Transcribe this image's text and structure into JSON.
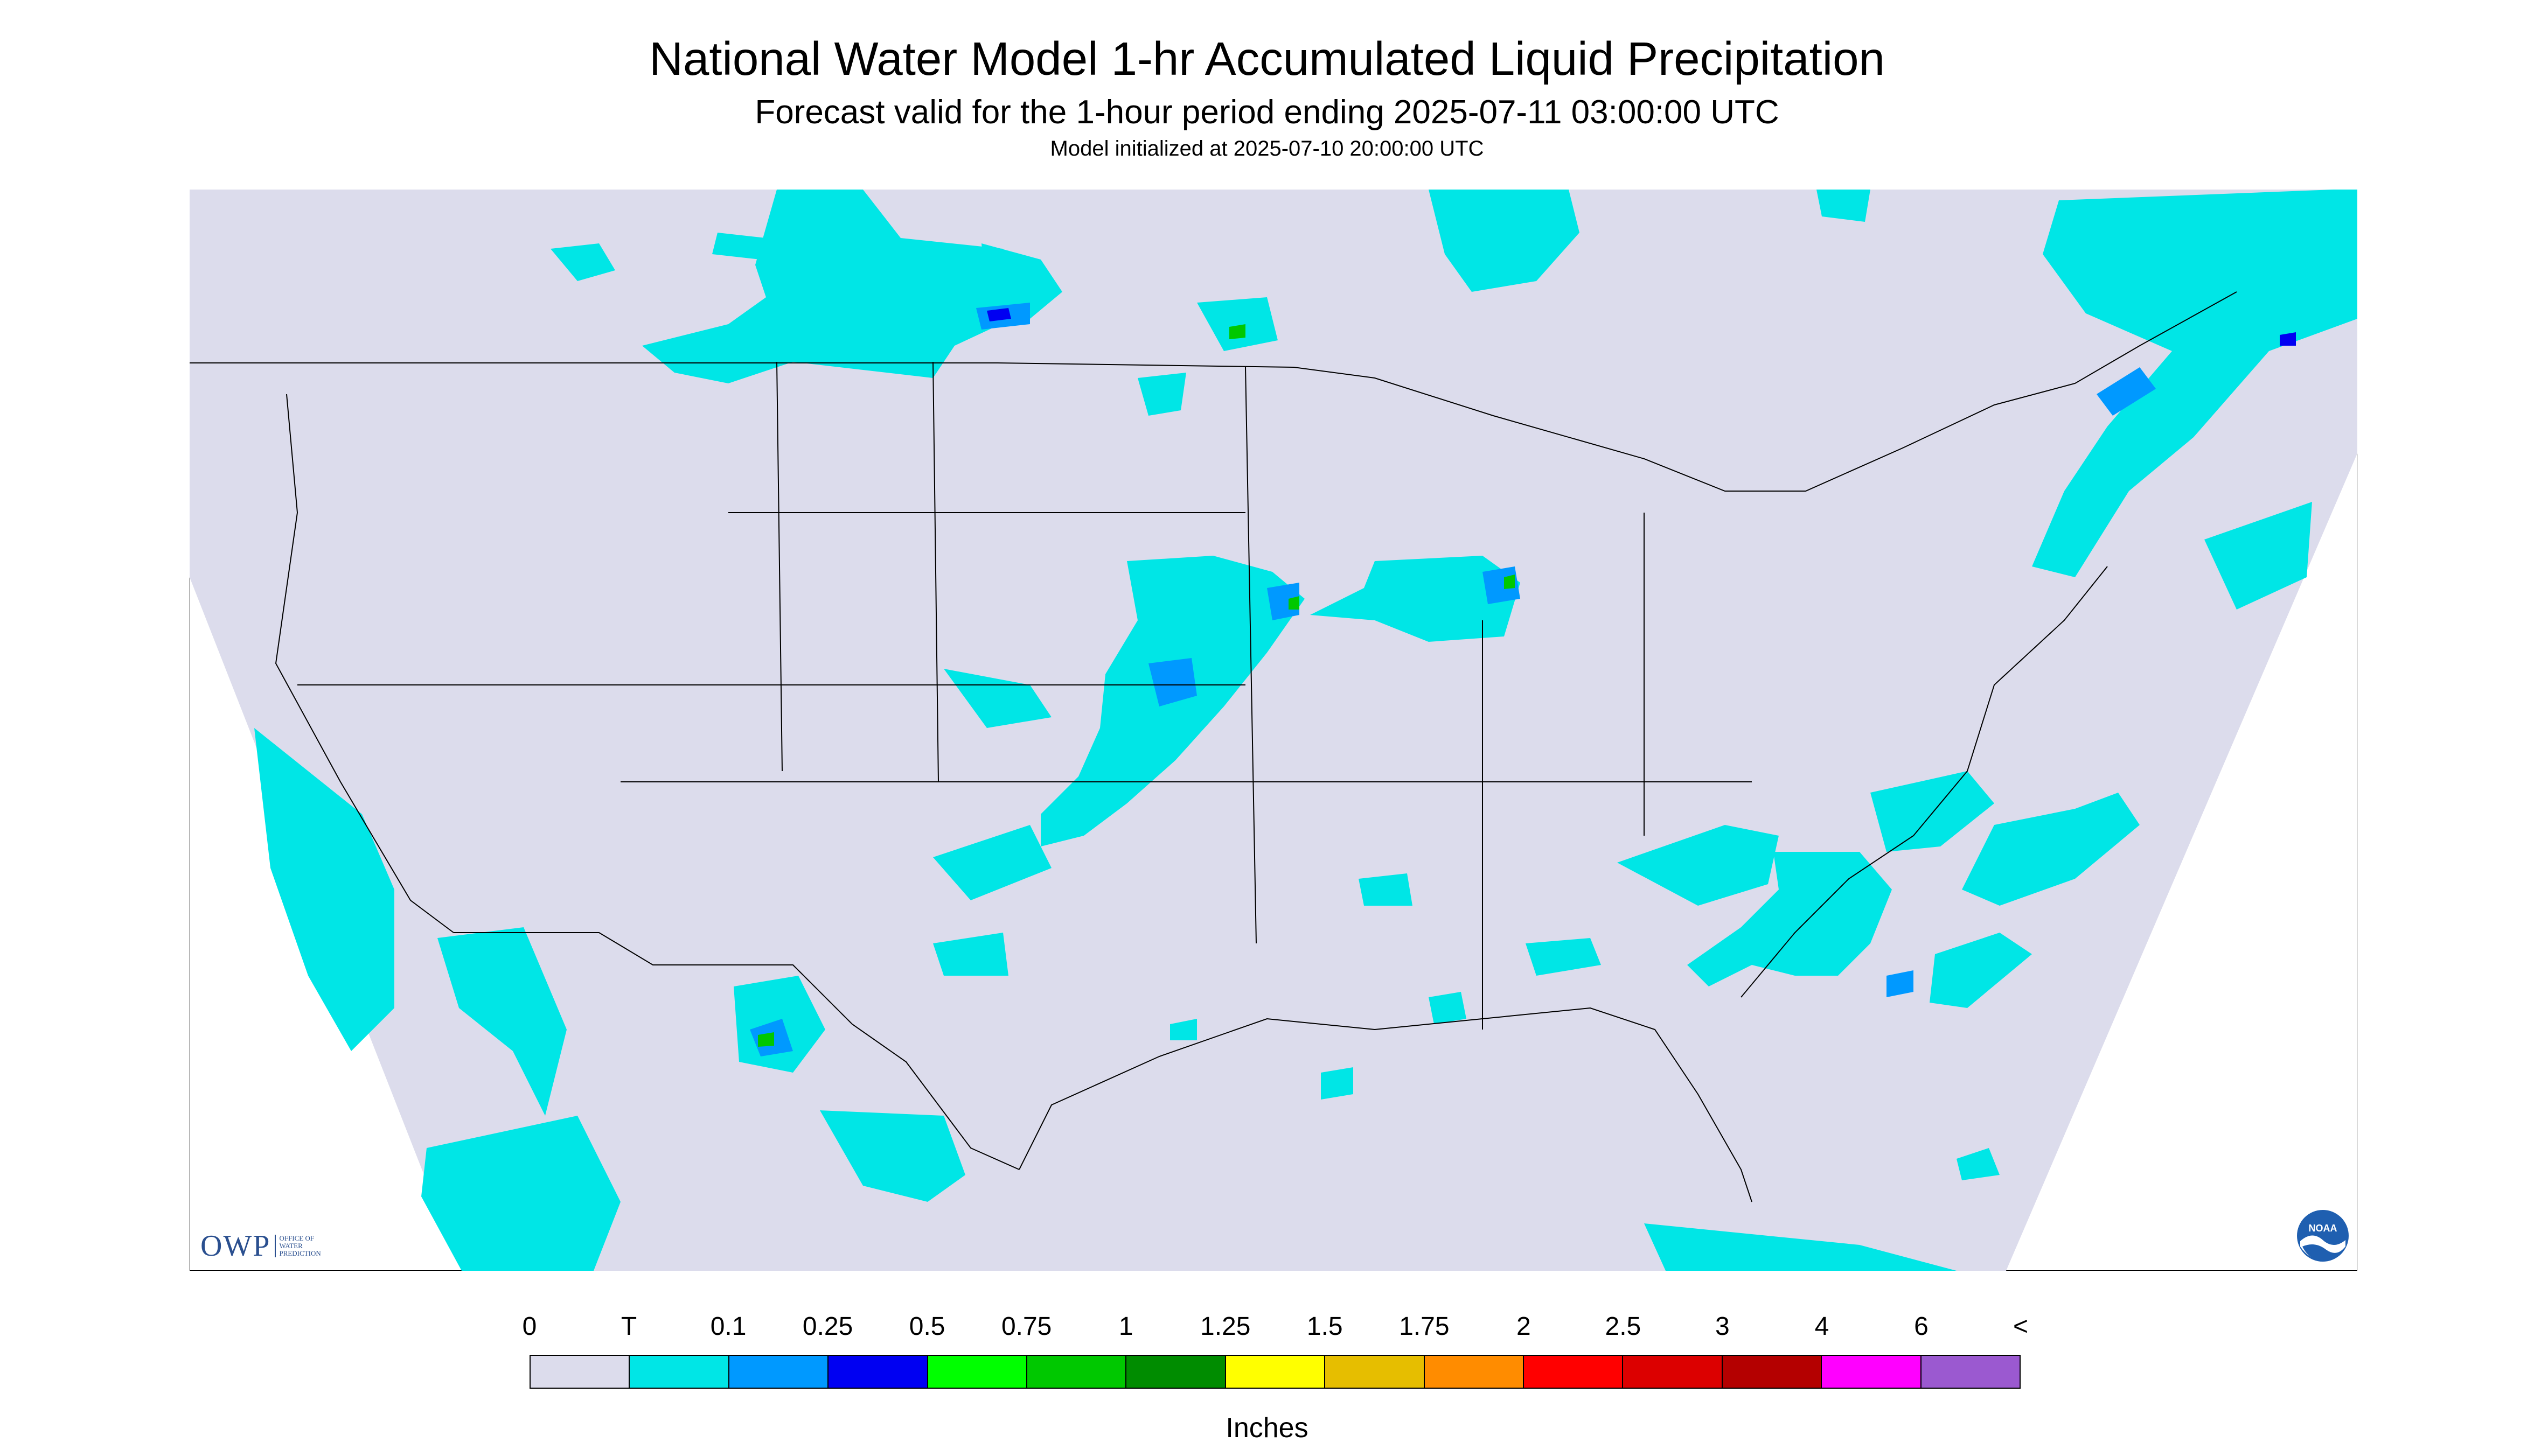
{
  "title": "National Water Model 1-hr Accumulated Liquid Precipitation",
  "subtitle": "Forecast valid for the 1-hour period ending 2025-07-11 03:00:00 UTC",
  "init_text": "Model initialized at 2025-07-10 20:00:00 UTC",
  "legend": {
    "labels": [
      "0",
      "T",
      "0.1",
      "0.25",
      "0.5",
      "0.75",
      "1",
      "1.25",
      "1.5",
      "1.75",
      "2",
      "2.5",
      "3",
      "4",
      "6",
      "<"
    ],
    "colors": [
      "#dcdcec",
      "#00e6e6",
      "#0099ff",
      "#0000f2",
      "#00ff00",
      "#00c800",
      "#008c00",
      "#ffff00",
      "#e6be00",
      "#ff8c00",
      "#ff0000",
      "#dc0000",
      "#b40000",
      "#ff00ff",
      "#9b59d0"
    ],
    "units": "Inches"
  },
  "logos": {
    "owp": {
      "text": "OWP",
      "sub": [
        "OFFICE OF",
        "WATER",
        "PREDICTION"
      ]
    },
    "noaa": {
      "text": "NOAA"
    }
  },
  "map_colors": {
    "background": "#dcdcec",
    "outside": "#ffffff",
    "boundary": "#000000",
    "trace": "#00e6e6",
    "light": "#0099ff",
    "moderate": "#0000f2",
    "heavy": "#00c800",
    "heavier": "#ffff00"
  }
}
